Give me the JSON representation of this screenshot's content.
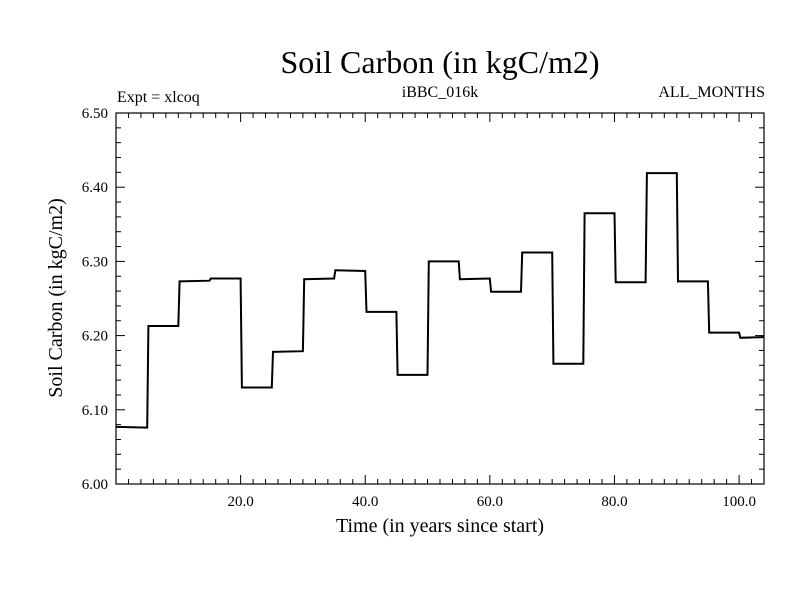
{
  "chart_data": {
    "type": "line",
    "step": true,
    "title": "Soil Carbon (in kgC/m2)",
    "subtitle_left": "Expt = xlcoq",
    "subtitle_center": "iBBC_016k",
    "subtitle_right": "ALL_MONTHS",
    "xlabel": "Time (in years since start)",
    "ylabel": "Soil Carbon (in kgC/m2)",
    "xlim": [
      0,
      104
    ],
    "ylim": [
      6.0,
      6.5
    ],
    "x_ticks": [
      20,
      40,
      60,
      80,
      100
    ],
    "x_tick_labels": [
      "20.0",
      "40.0",
      "60.0",
      "80.0",
      "100.0"
    ],
    "y_ticks": [
      6.0,
      6.1,
      6.2,
      6.3,
      6.4,
      6.5
    ],
    "y_tick_labels": [
      "6.00",
      "6.10",
      "6.20",
      "6.30",
      "6.40",
      "6.50"
    ],
    "series": [
      {
        "name": "Soil Carbon",
        "x": [
          0,
          5,
          5.2,
          10,
          10.2,
          15,
          15.2,
          20,
          20.2,
          25,
          25.2,
          30,
          30.2,
          35,
          35.2,
          40,
          40.2,
          45,
          45.2,
          50,
          50.2,
          55,
          55.2,
          60,
          60.2,
          65,
          65.2,
          70,
          70.2,
          75,
          75.2,
          80,
          80.2,
          85,
          85.2,
          90,
          90.2,
          95,
          95.2,
          100,
          100.2,
          104
        ],
        "y": [
          6.077,
          6.076,
          6.213,
          6.213,
          6.273,
          6.274,
          6.277,
          6.277,
          6.13,
          6.13,
          6.178,
          6.179,
          6.276,
          6.277,
          6.288,
          6.287,
          6.232,
          6.232,
          6.147,
          6.147,
          6.3,
          6.3,
          6.276,
          6.277,
          6.259,
          6.259,
          6.312,
          6.312,
          6.162,
          6.162,
          6.365,
          6.365,
          6.272,
          6.272,
          6.419,
          6.419,
          6.273,
          6.273,
          6.204,
          6.204,
          6.197,
          6.198
        ]
      }
    ]
  }
}
